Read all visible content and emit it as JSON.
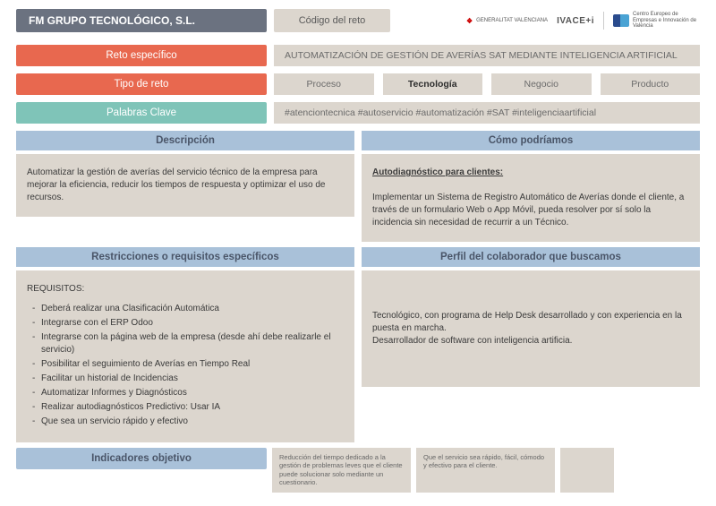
{
  "header": {
    "company": "FM GRUPO TECNOLÓGICO, S.L.",
    "code_label": "Código del reto",
    "logos": {
      "gv": "GENERALITAT VALENCIANA",
      "ivace": "IVACE+i",
      "ceei": "Centro Europeo de Empresas e Innovación de Valencia"
    }
  },
  "reto": {
    "label": "Reto específico",
    "text": "AUTOMATIZACIÓN DE GESTIÓN DE AVERÍAS SAT MEDIANTE INTELIGENCIA ARTIFICIAL"
  },
  "tipo": {
    "label": "Tipo de reto",
    "options": [
      "Proceso",
      "Tecnología",
      "Negocio",
      "Producto"
    ],
    "selected": "Tecnología"
  },
  "palabras": {
    "label": "Palabras Clave",
    "text": "#atenciontecnica #autoservicio #automatización #SAT #inteligenciaartificial"
  },
  "descripcion": {
    "header": "Descripción",
    "body": "Automatizar la gestión de averías del servicio técnico de la empresa para mejorar la eficiencia, reducir los tiempos de respuesta y optimizar el uso de recursos."
  },
  "como": {
    "header": "Cómo podríamos",
    "title": "Autodiagnóstico para clientes:",
    "body": "Implementar un Sistema de Registro Automático de Averías donde el cliente, a través de un formulario Web o App Móvil, pueda resolver por sí solo la incidencia sin necesidad de recurrir a un Técnico."
  },
  "restricciones": {
    "header": "Restricciones o requisitos específicos",
    "title": "REQUISITOS:",
    "items": [
      "Deberá realizar una Clasificación Automática",
      "Integrarse con el ERP Odoo",
      "Integrarse con la página web de la empresa (desde ahí debe realizarle el servicio)",
      "Posibilitar el seguimiento de Averías en Tiempo Real",
      "Facilitar un historial de Incidencias",
      "Automatizar Informes y Diagnósticos",
      "Realizar autodiagnósticos Predictivo: Usar IA",
      "Que sea un servicio rápido y efectivo"
    ]
  },
  "perfil": {
    "header": "Perfil del colaborador que buscamos",
    "body1": "Tecnológico, con programa de Help Desk desarrollado y con experiencia en la puesta en marcha.",
    "body2": "Desarrollador de software con inteligencia artificia."
  },
  "indicadores": {
    "label": "Indicadores objetivo",
    "box1": "Reducción del tiempo dedicado a la gestión de problemas leves que el cliente puede solucionar solo mediante un cuestionario.",
    "box2": "Que el servicio sea rápido, fácil, cómodo y efectivo para el cliente."
  }
}
